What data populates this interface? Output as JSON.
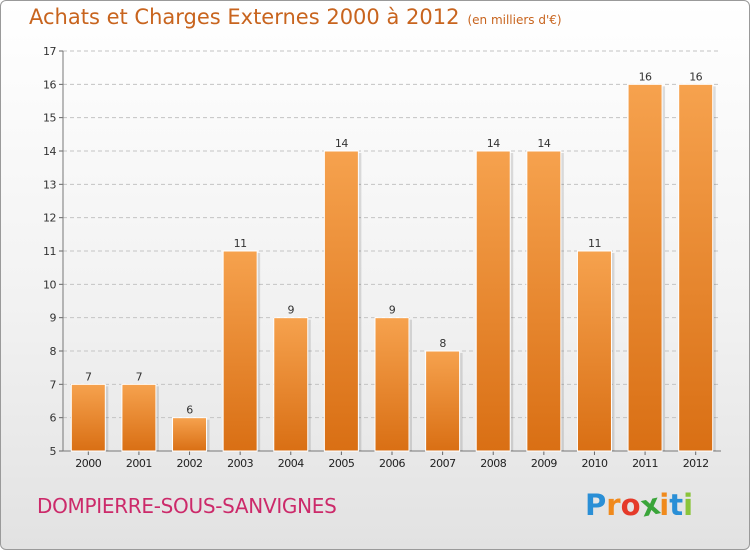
{
  "header": {
    "title": "Achats et Charges Externes 2000 à 2012",
    "subtitle": "(en milliers d'€)"
  },
  "footer": {
    "city": "DOMPIERRE-SOUS-SANVIGNES",
    "logo": {
      "letters": [
        "P",
        "r",
        "o",
        "x",
        "i",
        "t",
        "i"
      ],
      "colors": [
        "#2a8fd6",
        "#f08a1c",
        "#e53a2a",
        "#3aa53a",
        "#f08a1c",
        "#2a8fd6",
        "#8ac43a"
      ]
    }
  },
  "chart_data": {
    "type": "bar",
    "categories": [
      "2000",
      "2001",
      "2002",
      "2003",
      "2004",
      "2005",
      "2006",
      "2007",
      "2008",
      "2009",
      "2010",
      "2011",
      "2012"
    ],
    "values": [
      7,
      7,
      6,
      11,
      9,
      14,
      9,
      8,
      14,
      14,
      11,
      16,
      16
    ],
    "data_labels": [
      "7",
      "7",
      "6",
      "11",
      "9",
      "14",
      "9",
      "8",
      "14",
      "14",
      "11",
      "16",
      "16"
    ],
    "ylim": [
      5,
      17
    ],
    "yticks": [
      5,
      6,
      7,
      8,
      9,
      10,
      11,
      12,
      13,
      14,
      15,
      16,
      17
    ],
    "grid": "horizontal dashed",
    "bar_color": "#f0862a"
  }
}
